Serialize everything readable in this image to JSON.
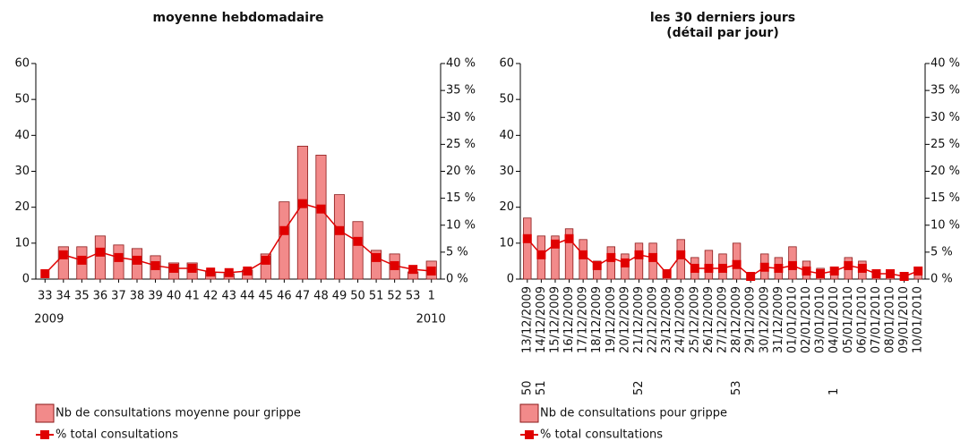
{
  "chart_data": [
    {
      "type": "combo",
      "title": "moyenne hebdomadaire",
      "categories": [
        "33",
        "34",
        "35",
        "36",
        "37",
        "38",
        "39",
        "40",
        "41",
        "42",
        "43",
        "44",
        "45",
        "46",
        "47",
        "48",
        "49",
        "50",
        "51",
        "52",
        "53",
        "1"
      ],
      "sub_labels": [
        "2009",
        null,
        null,
        null,
        null,
        null,
        null,
        null,
        null,
        null,
        null,
        null,
        null,
        null,
        null,
        null,
        null,
        null,
        null,
        null,
        null,
        "2010"
      ],
      "series": [
        {
          "name": "Nb de consultations moyenne pour grippe",
          "type": "bar",
          "color": "#f28a8a",
          "values": [
            0,
            9,
            9,
            12,
            9.5,
            8.5,
            6.5,
            4.5,
            4.5,
            2,
            1.5,
            2.5,
            7,
            21.5,
            37,
            34.5,
            23.5,
            16,
            8,
            7,
            2,
            5
          ]
        },
        {
          "name": "% total consultations",
          "type": "line",
          "axis": "y2",
          "color": "#e00000",
          "values": [
            1,
            4.5,
            3.5,
            5,
            4,
            3.5,
            2.5,
            2,
            2,
            1.3,
            1.2,
            1.5,
            3.5,
            9,
            14,
            13,
            9,
            7,
            4,
            2.5,
            1.8,
            1.5
          ]
        }
      ],
      "ylim": [
        0,
        60
      ],
      "yticks": [
        0,
        10,
        20,
        30,
        40,
        50,
        60
      ],
      "y2lim": [
        0,
        40
      ],
      "y2ticks": [
        {
          "value": 0,
          "label": "0 %"
        },
        {
          "value": 5,
          "label": "5 %"
        },
        {
          "value": 10,
          "label": "10 %"
        },
        {
          "value": 15,
          "label": "15 %"
        },
        {
          "value": 20,
          "label": "20 %"
        },
        {
          "value": 25,
          "label": "25 %"
        },
        {
          "value": 30,
          "label": "30 %"
        },
        {
          "value": 35,
          "label": "35 %"
        },
        {
          "value": 40,
          "label": "40 %"
        }
      ]
    },
    {
      "type": "combo",
      "title": "les 30 derniers jours",
      "subtitle": "(détail par jour)",
      "categories": [
        "13/12/2009",
        "14/12/2009",
        "15/12/2009",
        "16/12/2009",
        "17/12/2009",
        "18/12/2009",
        "19/12/2009",
        "20/12/2009",
        "21/12/2009",
        "22/12/2009",
        "23/12/2009",
        "24/12/2009",
        "25/12/2009",
        "26/12/2009",
        "27/12/2009",
        "28/12/2009",
        "29/12/2009",
        "30/12/2009",
        "31/12/2009",
        "01/01/2010",
        "02/01/2010",
        "03/01/2010",
        "04/01/2010",
        "05/01/2010",
        "06/01/2010",
        "07/01/2010",
        "08/01/2010",
        "09/01/2010",
        "10/01/2010"
      ],
      "sub_labels": [
        "50",
        "51",
        null,
        null,
        null,
        null,
        null,
        null,
        "52",
        null,
        null,
        null,
        null,
        null,
        null,
        "53",
        null,
        null,
        null,
        null,
        null,
        null,
        "1",
        null,
        null,
        null,
        null,
        null,
        null
      ],
      "series": [
        {
          "name": "Nb de consultations pour grippe",
          "type": "bar",
          "color": "#f28a8a",
          "values": [
            17,
            12,
            12,
            14,
            11,
            5,
            9,
            7,
            10,
            10,
            1,
            11,
            6,
            8,
            7,
            10,
            1,
            7,
            6,
            9,
            5,
            3,
            3,
            6,
            5,
            1,
            1,
            0.5,
            2
          ]
        },
        {
          "name": "% total consultations",
          "type": "line",
          "axis": "y2",
          "color": "#e00000",
          "values": [
            7.5,
            4.5,
            6.5,
            7.5,
            4.5,
            2.5,
            4,
            3,
            4.5,
            4,
            1,
            4.5,
            2,
            2,
            2,
            2.7,
            0.5,
            2.2,
            2,
            2.5,
            1.5,
            1,
            1.5,
            2.5,
            2,
            1,
            1,
            0.5,
            1.5
          ]
        }
      ],
      "ylim": [
        0,
        60
      ],
      "yticks": [
        0,
        10,
        20,
        30,
        40,
        50,
        60
      ],
      "y2lim": [
        0,
        40
      ],
      "y2ticks": [
        {
          "value": 0,
          "label": "0 %"
        },
        {
          "value": 5,
          "label": "5 %"
        },
        {
          "value": 10,
          "label": "10 %"
        },
        {
          "value": 15,
          "label": "15 %"
        },
        {
          "value": 20,
          "label": "20 %"
        },
        {
          "value": 25,
          "label": "25 %"
        },
        {
          "value": 30,
          "label": "30 %"
        },
        {
          "value": 35,
          "label": "35 %"
        },
        {
          "value": 40,
          "label": "40 %"
        }
      ]
    }
  ]
}
